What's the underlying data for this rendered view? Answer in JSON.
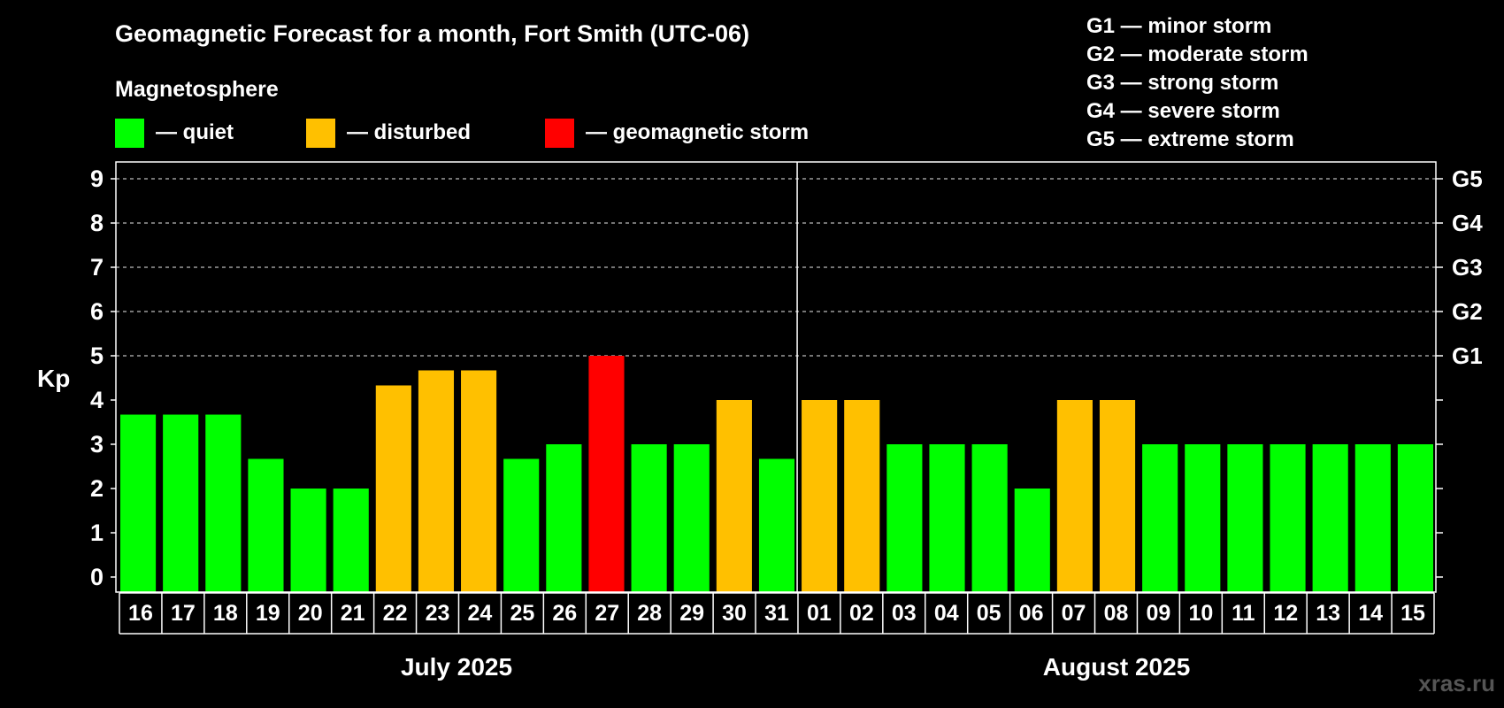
{
  "colors": {
    "background": "#000000",
    "quiet": "#00ff00",
    "disturbed": "#ffc000",
    "storm": "#ff0000",
    "text": "#ffffff",
    "watermark": "#555555"
  },
  "legend": {
    "section_title": "Magnetosphere",
    "items": [
      {
        "key": "quiet",
        "label": "— quiet"
      },
      {
        "key": "disturbed",
        "label": "— disturbed"
      },
      {
        "key": "storm",
        "label": "— geomagnetic storm"
      }
    ],
    "storm_levels": [
      "G1 — minor storm",
      "G2 — moderate storm",
      "G3 — strong storm",
      "G4 — severe storm",
      "G5 — extreme storm"
    ]
  },
  "watermark": "xras.ru",
  "chart_data": {
    "type": "bar",
    "title": "Geomagnetic Forecast for a month, Fort Smith (UTC-06)",
    "ylabel": "Kp",
    "ylim": [
      0,
      9
    ],
    "yticks": [
      "0",
      "1",
      "2",
      "3",
      "4",
      "5",
      "6",
      "7",
      "8",
      "9"
    ],
    "right_ticks": [
      {
        "kp": 5,
        "label": "G1"
      },
      {
        "kp": 6,
        "label": "G2"
      },
      {
        "kp": 7,
        "label": "G3"
      },
      {
        "kp": 8,
        "label": "G4"
      },
      {
        "kp": 9,
        "label": "G5"
      }
    ],
    "grid": "dashed horizontal at Kp 5-9",
    "months": [
      {
        "label": "July 2025",
        "days": 16
      },
      {
        "label": "August 2025",
        "days": 15
      }
    ],
    "categories": [
      "16",
      "17",
      "18",
      "19",
      "20",
      "21",
      "22",
      "23",
      "24",
      "25",
      "26",
      "27",
      "28",
      "29",
      "30",
      "31",
      "01",
      "02",
      "03",
      "04",
      "05",
      "06",
      "07",
      "08",
      "09",
      "10",
      "11",
      "12",
      "13",
      "14",
      "15"
    ],
    "values": [
      3.67,
      3.67,
      3.67,
      2.67,
      2,
      2,
      4.33,
      4.67,
      4.67,
      2.67,
      3,
      5,
      3,
      3,
      4,
      2.67,
      4,
      4,
      3,
      3,
      3,
      2,
      4,
      4,
      3,
      3,
      3,
      3,
      3,
      3,
      3
    ],
    "levels": [
      "quiet",
      "quiet",
      "quiet",
      "quiet",
      "quiet",
      "quiet",
      "disturbed",
      "disturbed",
      "disturbed",
      "quiet",
      "quiet",
      "storm",
      "quiet",
      "quiet",
      "disturbed",
      "quiet",
      "disturbed",
      "disturbed",
      "quiet",
      "quiet",
      "quiet",
      "quiet",
      "disturbed",
      "disturbed",
      "quiet",
      "quiet",
      "quiet",
      "quiet",
      "quiet",
      "quiet",
      "quiet"
    ]
  }
}
